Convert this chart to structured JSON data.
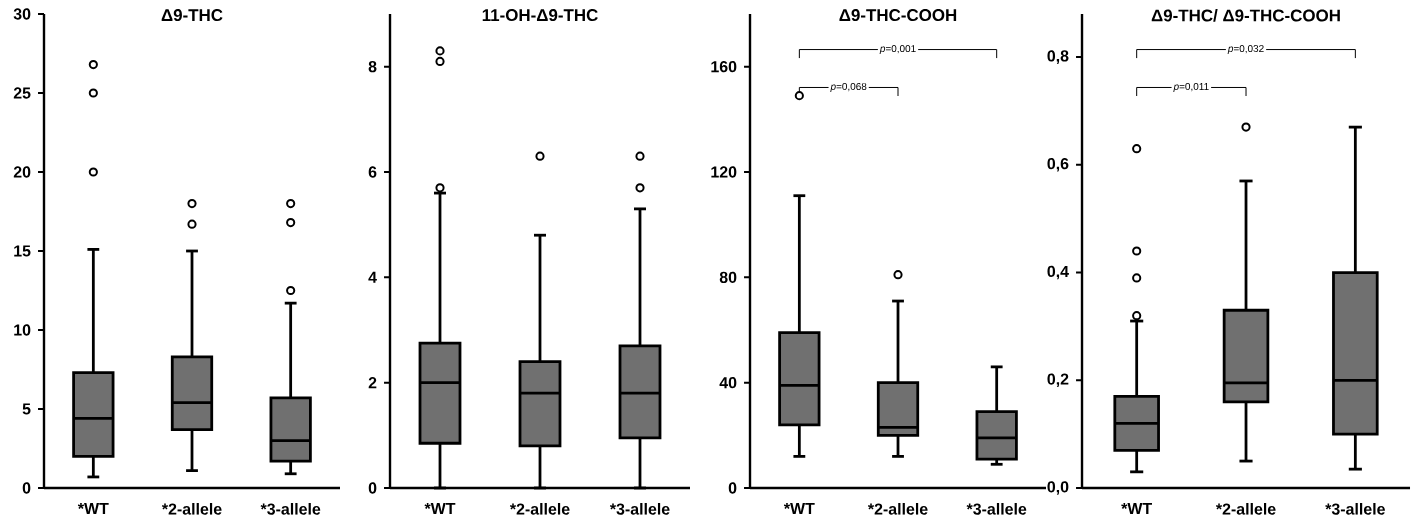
{
  "chart_data": [
    {
      "type": "box",
      "title": "Δ9-THC",
      "categories": [
        "*WT",
        "*2-allele",
        "*3-allele"
      ],
      "ylim": [
        0,
        30
      ],
      "yticks": [
        0,
        5,
        10,
        15,
        20,
        25,
        30
      ],
      "marker": "circle",
      "series": [
        {
          "color": "#707070",
          "boxes": [
            {
              "low": 0.7,
              "q1": 2.0,
              "median": 4.4,
              "q3": 7.3,
              "high": 15.1,
              "outliers": [
                20.0,
                25.0,
                26.8
              ]
            },
            {
              "low": 1.1,
              "q1": 3.7,
              "median": 5.4,
              "q3": 8.3,
              "high": 15.0,
              "outliers": [
                16.7,
                18.0
              ]
            },
            {
              "low": 0.9,
              "q1": 1.7,
              "median": 3.0,
              "q3": 5.7,
              "high": 11.7,
              "outliers": [
                12.5,
                16.8,
                18.0
              ]
            }
          ]
        }
      ]
    },
    {
      "type": "box",
      "title": "11-OH-Δ9-THC",
      "categories": [
        "*WT",
        "*2-allele",
        "*3-allele"
      ],
      "ylim": [
        0,
        9
      ],
      "yticks": [
        0,
        2,
        4,
        6,
        8
      ],
      "marker": "circle",
      "series": [
        {
          "color": "#707070",
          "boxes": [
            {
              "low": 0.0,
              "q1": 0.85,
              "median": 2.0,
              "q3": 2.75,
              "high": 5.6,
              "outliers": [
                5.7,
                8.1,
                8.3
              ]
            },
            {
              "low": 0.0,
              "q1": 0.8,
              "median": 1.8,
              "q3": 2.4,
              "high": 4.8,
              "outliers": [
                6.3
              ]
            },
            {
              "low": 0.0,
              "q1": 0.95,
              "median": 1.8,
              "q3": 2.7,
              "high": 5.3,
              "outliers": [
                5.7,
                6.3
              ]
            }
          ]
        }
      ]
    },
    {
      "type": "box",
      "title": "Δ9-THC-COOH",
      "categories": [
        "*WT",
        "*2-allele",
        "*3-allele"
      ],
      "ylim": [
        0,
        180
      ],
      "yticks": [
        0,
        40,
        80,
        120,
        160
      ],
      "marker": "circle",
      "annotations": [
        "*p*=0,068",
        "*p*=0,001"
      ],
      "series": [
        {
          "color": "#707070",
          "boxes": [
            {
              "low": 12,
              "q1": 24,
              "median": 39,
              "q3": 59,
              "high": 111,
              "outliers": [
                149
              ]
            },
            {
              "low": 12,
              "q1": 20,
              "median": 23,
              "q3": 40,
              "high": 71,
              "outliers": [
                81
              ]
            },
            {
              "low": 9,
              "q1": 11,
              "median": 19,
              "q3": 29,
              "high": 46
            }
          ]
        }
      ]
    },
    {
      "type": "box",
      "title": "Δ9-THC/ Δ9-THC-COOH",
      "categories": [
        "*WT",
        "*2-allele",
        "*3-allele"
      ],
      "ylim": [
        0,
        0.88
      ],
      "yticks": [
        {
          "value": 0,
          "label": "0,0"
        },
        {
          "value": 0.2,
          "label": "0,2"
        },
        {
          "value": 0.4,
          "label": "0,4"
        },
        {
          "value": 0.6,
          "label": "0,6"
        },
        {
          "value": 0.8,
          "label": "0,8"
        }
      ],
      "marker": "circle",
      "annotations": [
        "*p*=0,011",
        "*p*=0,032"
      ],
      "series": [
        {
          "color": "#707070",
          "boxes": [
            {
              "low": 0.03,
              "q1": 0.07,
              "median": 0.12,
              "q3": 0.17,
              "high": 0.31,
              "outliers": [
                0.32,
                0.39,
                0.44,
                0.63
              ]
            },
            {
              "low": 0.05,
              "q1": 0.16,
              "median": 0.195,
              "q3": 0.33,
              "high": 0.57,
              "outliers": [
                0.67
              ]
            },
            {
              "low": 0.035,
              "q1": 0.1,
              "median": 0.2,
              "q3": 0.4,
              "high": 0.67
            }
          ]
        }
      ]
    }
  ]
}
